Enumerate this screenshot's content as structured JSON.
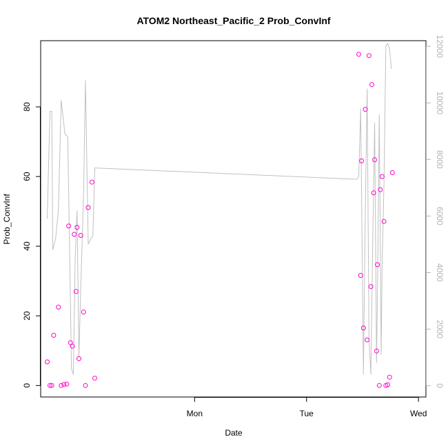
{
  "chart_data": {
    "type": "scatter",
    "title": "ATOM2 Northeast_Pacific_2 Prob_ConvInf",
    "xlabel": "Date",
    "ylabel": "Prob_ConvInf",
    "x_ticks": [
      "Mon",
      "Tue",
      "Wed"
    ],
    "y_ticks": [
      "0",
      "20",
      "40",
      "60",
      "80"
    ],
    "y2_ticks": [
      "0",
      "2000",
      "4000",
      "6000",
      "8000",
      "10000",
      "12000"
    ],
    "xlim_hours_from_mon": [
      -16.5,
      24.8
    ],
    "ylim": [
      -3.3,
      99
    ],
    "y2lim": [
      -400,
      12200
    ],
    "colors": {
      "points": "#ff00cc",
      "line": "#c0c0c0",
      "axis2": "#b3b3b3"
    },
    "series": [
      {
        "type": "scatter",
        "axis": "left",
        "points": [
          [
            -15.8,
            6.8
          ],
          [
            -15.5,
            0.0
          ],
          [
            -15.3,
            0.0
          ],
          [
            -15.1,
            14.4
          ],
          [
            -14.6,
            22.5
          ],
          [
            -14.3,
            0.0
          ],
          [
            -14.0,
            0.3
          ],
          [
            -13.7,
            0.4
          ],
          [
            -13.5,
            45.8
          ],
          [
            -13.3,
            12.3
          ],
          [
            -13.1,
            11.3
          ],
          [
            -12.9,
            43.4
          ],
          [
            -12.7,
            27.0
          ],
          [
            -12.6,
            45.4
          ],
          [
            -12.4,
            7.7
          ],
          [
            -12.2,
            43.1
          ],
          [
            -11.9,
            21.1
          ],
          [
            -11.7,
            0.0
          ],
          [
            -11.4,
            51.1
          ],
          [
            -11.0,
            58.4
          ],
          [
            -10.7,
            2.1
          ],
          [
            17.6,
            95.1
          ],
          [
            17.8,
            31.6
          ],
          [
            17.9,
            64.5
          ],
          [
            18.1,
            16.5
          ],
          [
            18.3,
            79.3
          ],
          [
            18.5,
            13.1
          ],
          [
            18.7,
            94.7
          ],
          [
            18.9,
            28.4
          ],
          [
            19.0,
            86.4
          ],
          [
            19.2,
            55.3
          ],
          [
            19.3,
            64.8
          ],
          [
            19.5,
            9.9
          ],
          [
            19.6,
            34.7
          ],
          [
            19.8,
            0.0
          ],
          [
            19.9,
            56.2
          ],
          [
            20.1,
            60.0
          ],
          [
            20.3,
            47.1
          ],
          [
            20.5,
            0.0
          ],
          [
            20.7,
            0.2
          ],
          [
            20.9,
            2.4
          ],
          [
            21.2,
            61.1
          ]
        ]
      },
      {
        "type": "line",
        "axis": "right",
        "points": [
          [
            -15.8,
            5900
          ],
          [
            -15.5,
            9700
          ],
          [
            -15.3,
            9700
          ],
          [
            -15.2,
            4800
          ],
          [
            -14.9,
            5200
          ],
          [
            -14.6,
            6200
          ],
          [
            -14.3,
            10100
          ],
          [
            -13.9,
            8900
          ],
          [
            -13.6,
            8800
          ],
          [
            -13.4,
            4800
          ],
          [
            -13.2,
            600
          ],
          [
            -13.0,
            400
          ],
          [
            -12.8,
            4500
          ],
          [
            -12.6,
            6200
          ],
          [
            -12.4,
            1000
          ],
          [
            -12.2,
            3500
          ],
          [
            -11.9,
            6800
          ],
          [
            -11.7,
            10800
          ],
          [
            -11.4,
            5000
          ],
          [
            -11.1,
            5200
          ],
          [
            -10.9,
            5300
          ],
          [
            -10.7,
            7700
          ],
          [
            17.4,
            7300
          ],
          [
            17.6,
            7400
          ],
          [
            17.8,
            9800
          ],
          [
            18.1,
            400
          ],
          [
            18.3,
            6100
          ],
          [
            18.5,
            10500
          ],
          [
            18.7,
            1600
          ],
          [
            18.9,
            400
          ],
          [
            19.1,
            5200
          ],
          [
            19.3,
            9300
          ],
          [
            19.5,
            800
          ],
          [
            19.6,
            3200
          ],
          [
            19.8,
            9600
          ],
          [
            20.0,
            1100
          ],
          [
            20.1,
            4300
          ],
          [
            20.3,
            7100
          ],
          [
            20.5,
            12000
          ],
          [
            20.7,
            12100
          ],
          [
            20.9,
            11900
          ],
          [
            21.1,
            11200
          ]
        ]
      }
    ]
  }
}
